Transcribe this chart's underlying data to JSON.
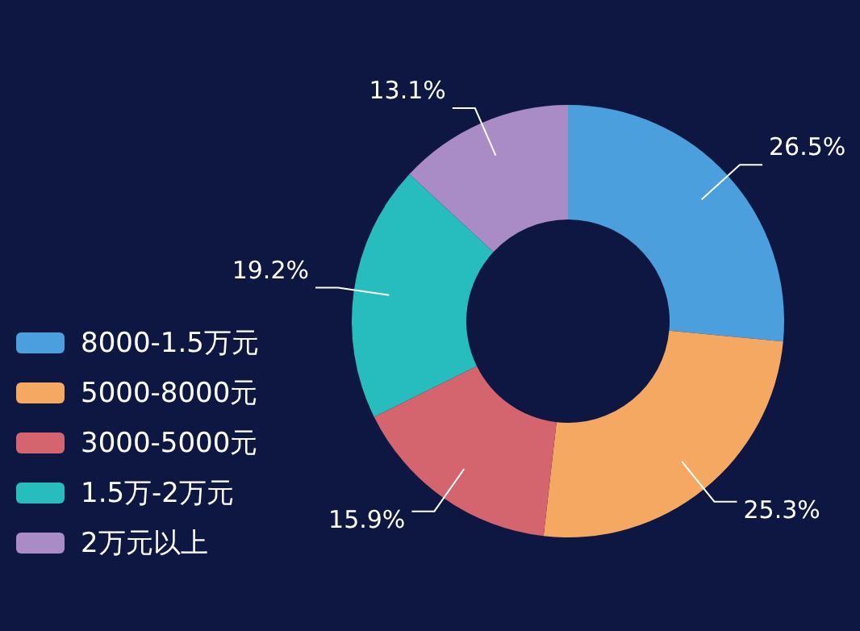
{
  "chart_data": {
    "type": "donut",
    "categories": [
      "8000-1.5万元",
      "5000-8000元",
      "3000-5000元",
      "1.5万-2万元",
      "2万元以上"
    ],
    "values": [
      26.5,
      25.3,
      15.9,
      19.2,
      13.1
    ],
    "colors": [
      "#4a9fdc",
      "#f4a862",
      "#d4646e",
      "#27bcbe",
      "#a98cc6"
    ],
    "value_labels": [
      "26.5%",
      "25.3%",
      "15.9%",
      "19.2%",
      "13.1%"
    ],
    "legend": "left"
  }
}
